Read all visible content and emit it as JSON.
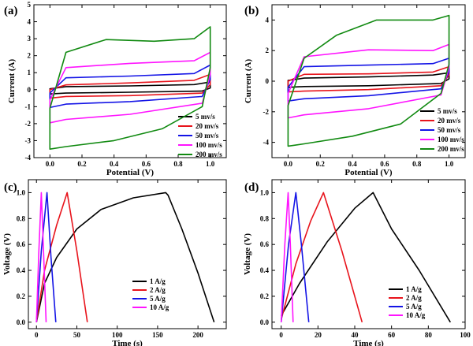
{
  "colors": {
    "black": "#000000",
    "red": "#e8141c",
    "blue": "#1414e6",
    "magenta": "#ff14ff",
    "green": "#118a11"
  },
  "chart_data": [
    {
      "panel": "(a)",
      "type": "line",
      "xlabel": "Potential (V)",
      "ylabel": "Current (A)",
      "xlim": [
        -0.1,
        1.1
      ],
      "ylim": [
        -4,
        5
      ],
      "xticks": [
        0.0,
        0.2,
        0.4,
        0.6,
        0.8,
        1.0
      ],
      "yticks": [
        -4,
        -3,
        -2,
        -1,
        0,
        1,
        2,
        3,
        4,
        5
      ],
      "legend_position": "bottom-right",
      "series": [
        {
          "name": "5 mv/s",
          "color": "black",
          "upper": [
            [
              0.0,
              0.05
            ],
            [
              0.1,
              0.18
            ],
            [
              0.5,
              0.22
            ],
            [
              0.9,
              0.3
            ],
            [
              1.0,
              0.45
            ]
          ],
          "lower": [
            [
              1.0,
              0.1
            ],
            [
              0.95,
              -0.08
            ],
            [
              0.5,
              -0.15
            ],
            [
              0.1,
              -0.2
            ],
            [
              0.0,
              -0.25
            ]
          ]
        },
        {
          "name": "20 mv/s",
          "color": "red",
          "upper": [
            [
              0.0,
              0.0
            ],
            [
              0.1,
              0.28
            ],
            [
              0.5,
              0.4
            ],
            [
              0.9,
              0.55
            ],
            [
              1.0,
              0.9
            ]
          ],
          "lower": [
            [
              1.0,
              0.3
            ],
            [
              0.95,
              -0.2
            ],
            [
              0.5,
              -0.35
            ],
            [
              0.1,
              -0.4
            ],
            [
              0.0,
              -0.5
            ]
          ]
        },
        {
          "name": "50 mv/s",
          "color": "blue",
          "upper": [
            [
              0.0,
              -0.2
            ],
            [
              0.1,
              0.7
            ],
            [
              0.5,
              0.8
            ],
            [
              0.9,
              0.95
            ],
            [
              1.0,
              1.45
            ]
          ],
          "lower": [
            [
              1.0,
              0.6
            ],
            [
              0.95,
              -0.4
            ],
            [
              0.5,
              -0.7
            ],
            [
              0.1,
              -0.85
            ],
            [
              0.0,
              -1.05
            ]
          ]
        },
        {
          "name": "100 mv/s",
          "color": "magenta",
          "upper": [
            [
              0.0,
              -0.6
            ],
            [
              0.1,
              1.3
            ],
            [
              0.5,
              1.55
            ],
            [
              0.9,
              1.7
            ],
            [
              1.0,
              2.2
            ]
          ],
          "lower": [
            [
              1.0,
              0.9
            ],
            [
              0.95,
              -0.8
            ],
            [
              0.5,
              -1.45
            ],
            [
              0.1,
              -1.75
            ],
            [
              0.0,
              -1.95
            ]
          ]
        },
        {
          "name": "200 mv/s",
          "color": "green",
          "upper": [
            [
              0.0,
              -1.1
            ],
            [
              0.1,
              2.2
            ],
            [
              0.35,
              2.95
            ],
            [
              0.65,
              2.85
            ],
            [
              0.9,
              3.0
            ],
            [
              1.0,
              3.7
            ]
          ],
          "lower": [
            [
              1.0,
              1.3
            ],
            [
              0.95,
              -1.0
            ],
            [
              0.7,
              -2.3
            ],
            [
              0.4,
              -3.0
            ],
            [
              0.1,
              -3.35
            ],
            [
              0.0,
              -3.5
            ]
          ]
        }
      ]
    },
    {
      "panel": "(b)",
      "type": "line",
      "xlabel": "Potential (V)",
      "ylabel": "Current (A)",
      "xlim": [
        -0.1,
        1.1
      ],
      "ylim": [
        -5,
        5
      ],
      "xticks": [
        0.0,
        0.2,
        0.4,
        0.6,
        0.8,
        1.0
      ],
      "yticks": [
        -4,
        -2,
        0,
        2,
        4
      ],
      "legend_position": "bottom-right",
      "series": [
        {
          "name": "5 mv/s",
          "color": "black",
          "upper": [
            [
              0.0,
              0.05
            ],
            [
              0.1,
              0.2
            ],
            [
              0.5,
              0.28
            ],
            [
              0.9,
              0.4
            ],
            [
              1.0,
              0.55
            ]
          ],
          "lower": [
            [
              1.0,
              0.15
            ],
            [
              0.95,
              -0.15
            ],
            [
              0.5,
              -0.3
            ],
            [
              0.1,
              -0.35
            ],
            [
              0.0,
              -0.4
            ]
          ]
        },
        {
          "name": "20 mv/s",
          "color": "red",
          "upper": [
            [
              0.0,
              0.0
            ],
            [
              0.1,
              0.45
            ],
            [
              0.5,
              0.48
            ],
            [
              0.9,
              0.6
            ],
            [
              1.0,
              0.95
            ]
          ],
          "lower": [
            [
              1.0,
              0.4
            ],
            [
              0.95,
              -0.3
            ],
            [
              0.5,
              -0.55
            ],
            [
              0.1,
              -0.65
            ],
            [
              0.0,
              -0.7
            ]
          ]
        },
        {
          "name": "50 mv/s",
          "color": "blue",
          "upper": [
            [
              0.0,
              -0.4
            ],
            [
              0.1,
              0.95
            ],
            [
              0.5,
              1.05
            ],
            [
              0.9,
              1.15
            ],
            [
              1.0,
              1.5
            ]
          ],
          "lower": [
            [
              1.0,
              0.6
            ],
            [
              0.95,
              -0.5
            ],
            [
              0.5,
              -0.95
            ],
            [
              0.1,
              -1.15
            ],
            [
              0.0,
              -1.3
            ]
          ]
        },
        {
          "name": "100 mv/s",
          "color": "magenta",
          "upper": [
            [
              0.0,
              -0.8
            ],
            [
              0.1,
              1.6
            ],
            [
              0.5,
              2.05
            ],
            [
              0.9,
              2.0
            ],
            [
              1.0,
              2.4
            ]
          ],
          "lower": [
            [
              1.0,
              0.9
            ],
            [
              0.95,
              -0.9
            ],
            [
              0.5,
              -1.8
            ],
            [
              0.1,
              -2.2
            ],
            [
              0.0,
              -2.4
            ]
          ]
        },
        {
          "name": "200 mv/s",
          "color": "green",
          "upper": [
            [
              0.0,
              -1.6
            ],
            [
              0.1,
              1.5
            ],
            [
              0.3,
              3.0
            ],
            [
              0.55,
              4.0
            ],
            [
              0.9,
              4.0
            ],
            [
              1.0,
              4.3
            ]
          ],
          "lower": [
            [
              1.0,
              1.1
            ],
            [
              0.95,
              -0.8
            ],
            [
              0.7,
              -2.8
            ],
            [
              0.4,
              -3.6
            ],
            [
              0.1,
              -4.1
            ],
            [
              0.0,
              -4.25
            ]
          ]
        }
      ]
    },
    {
      "panel": "(c)",
      "type": "line",
      "xlabel": "Time (s)",
      "ylabel": "Voltage (V)",
      "xlim": [
        -10,
        235
      ],
      "ylim": [
        -0.05,
        1.1
      ],
      "xticks": [
        0,
        50,
        100,
        150,
        200
      ],
      "yticks": [
        0.0,
        0.2,
        0.4,
        0.6,
        0.8,
        1.0
      ],
      "legend_position": "bottom-right",
      "series": [
        {
          "name": "1 A/g",
          "color": "black",
          "points": [
            [
              0,
              0.0
            ],
            [
              10,
              0.3
            ],
            [
              25,
              0.5
            ],
            [
              50,
              0.72
            ],
            [
              80,
              0.87
            ],
            [
              120,
              0.96
            ],
            [
              160,
              1.0
            ],
            [
              163,
              0.98
            ],
            [
              180,
              0.72
            ],
            [
              200,
              0.38
            ],
            [
              220,
              0.0
            ]
          ]
        },
        {
          "name": "2 A/g",
          "color": "red",
          "points": [
            [
              0,
              0.0
            ],
            [
              10,
              0.4
            ],
            [
              25,
              0.75
            ],
            [
              38,
              1.0
            ],
            [
              50,
              0.55
            ],
            [
              63,
              0.0
            ]
          ]
        },
        {
          "name": "5 A/g",
          "color": "blue",
          "points": [
            [
              0,
              0.0
            ],
            [
              6,
              0.55
            ],
            [
              13,
              1.0
            ],
            [
              18,
              0.5
            ],
            [
              24,
              0.0
            ]
          ]
        },
        {
          "name": "10 A/g",
          "color": "magenta",
          "points": [
            [
              0,
              0.0
            ],
            [
              3,
              0.55
            ],
            [
              6,
              1.0
            ],
            [
              9,
              0.5
            ],
            [
              12,
              0.0
            ]
          ]
        }
      ]
    },
    {
      "panel": "(d)",
      "type": "line",
      "xlabel": "Time (s)",
      "ylabel": "Voltage (V)",
      "xlim": [
        -5,
        100
      ],
      "ylim": [
        -0.05,
        1.1
      ],
      "xticks": [
        0,
        20,
        40,
        60,
        80,
        100
      ],
      "yticks": [
        0.0,
        0.2,
        0.4,
        0.6,
        0.8,
        1.0
      ],
      "legend_position": "bottom-right",
      "series": [
        {
          "name": "1 A/g",
          "color": "black",
          "points": [
            [
              0,
              0.05
            ],
            [
              10,
              0.3
            ],
            [
              25,
              0.62
            ],
            [
              40,
              0.88
            ],
            [
              50,
              1.0
            ],
            [
              60,
              0.72
            ],
            [
              75,
              0.4
            ],
            [
              92,
              0.0
            ]
          ]
        },
        {
          "name": "2 A/g",
          "color": "red",
          "points": [
            [
              0,
              0.02
            ],
            [
              8,
              0.45
            ],
            [
              16,
              0.78
            ],
            [
              23,
              1.0
            ],
            [
              33,
              0.55
            ],
            [
              44,
              0.0
            ]
          ]
        },
        {
          "name": "5 A/g",
          "color": "blue",
          "points": [
            [
              0,
              0.0
            ],
            [
              4,
              0.6
            ],
            [
              8,
              1.0
            ],
            [
              11,
              0.6
            ],
            [
              15,
              0.0
            ]
          ]
        },
        {
          "name": "10 A/g",
          "color": "magenta",
          "points": [
            [
              0,
              0.0
            ],
            [
              2,
              0.6
            ],
            [
              3.8,
              1.0
            ],
            [
              5,
              0.6
            ],
            [
              6.5,
              0.0
            ]
          ]
        }
      ]
    }
  ]
}
